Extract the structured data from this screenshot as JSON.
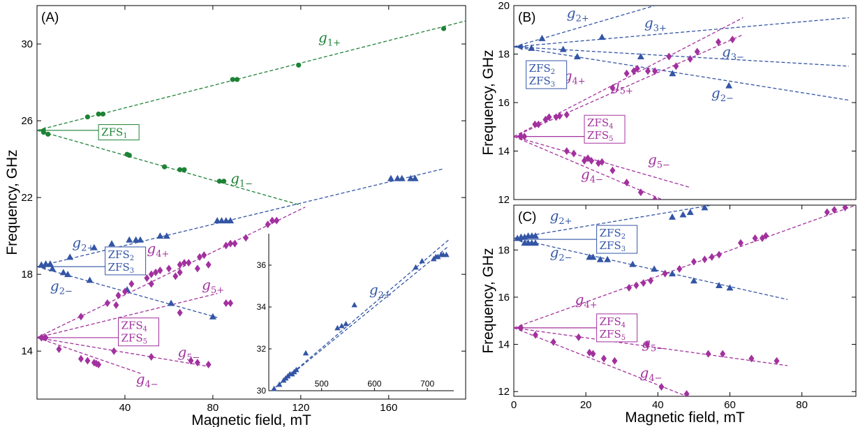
{
  "colors": {
    "green": "#1e8236",
    "blue": "#3355a5",
    "magenta": "#a2319e"
  },
  "chart_data": [
    {
      "panel": "(A)",
      "type": "scatter",
      "xlabel": "Magnetic field, mT",
      "ylabel": "Frequency, GHz",
      "xlim": [
        0,
        195
      ],
      "ylim": [
        11.5,
        32.0
      ],
      "xticks": [
        40,
        80,
        120,
        160
      ],
      "yticks": [
        14,
        18,
        22,
        26,
        30
      ],
      "lines": [
        {
          "color": "green",
          "x": [
            0,
            195
          ],
          "y": [
            25.5,
            31.2
          ]
        },
        {
          "color": "green",
          "x": [
            0,
            120
          ],
          "y": [
            25.5,
            21.6
          ]
        },
        {
          "color": "blue",
          "x": [
            0,
            185
          ],
          "y": [
            18.4,
            23.5
          ]
        },
        {
          "color": "blue",
          "x": [
            0,
            82
          ],
          "y": [
            18.4,
            15.75
          ]
        },
        {
          "color": "magenta",
          "x": [
            0,
            122
          ],
          "y": [
            14.7,
            21.5
          ]
        },
        {
          "color": "magenta",
          "x": [
            0,
            82
          ],
          "y": [
            14.7,
            17.0
          ]
        },
        {
          "color": "magenta",
          "x": [
            0,
            78
          ],
          "y": [
            14.7,
            13.2
          ]
        },
        {
          "color": "magenta",
          "x": [
            0,
            48
          ],
          "y": [
            14.7,
            12.8
          ]
        }
      ],
      "series": [
        {
          "color": "green",
          "marker": "circle",
          "x": [
            3,
            5,
            23,
            28,
            30,
            41,
            42,
            58,
            65,
            67,
            83,
            85,
            89,
            91,
            119,
            185
          ],
          "y": [
            25.4,
            25.3,
            26.2,
            26.35,
            26.35,
            24.25,
            24.2,
            23.6,
            23.45,
            23.45,
            22.85,
            22.85,
            28.15,
            28.15,
            28.9,
            30.8
          ]
        },
        {
          "color": "blue",
          "marker": "triangle",
          "x": [
            2,
            4,
            6,
            15,
            26,
            34,
            42,
            45,
            47,
            56,
            59,
            82,
            84,
            86,
            88,
            161,
            164,
            166,
            170,
            172,
            7,
            12,
            14,
            24,
            41,
            61,
            80
          ],
          "y": [
            18.5,
            18.55,
            18.55,
            18.9,
            19.4,
            19.6,
            19.8,
            19.8,
            19.8,
            20.0,
            20.0,
            20.8,
            20.8,
            20.8,
            20.8,
            23.0,
            23.0,
            23.0,
            23.0,
            23.0,
            18.3,
            18.1,
            18.0,
            17.7,
            17.2,
            16.5,
            15.8
          ]
        },
        {
          "color": "magenta",
          "marker": "diamond",
          "x": [
            2,
            4,
            32,
            37,
            40,
            43,
            50,
            52,
            54,
            56,
            60,
            65,
            67,
            69,
            74,
            76,
            86,
            88,
            90,
            95,
            105,
            107,
            109,
            20,
            36,
            52,
            63,
            65,
            73,
            78,
            65,
            86,
            88,
            35,
            52,
            70,
            73,
            78,
            10,
            20,
            23,
            26,
            27,
            28
          ],
          "y": [
            14.7,
            14.7,
            16.5,
            16.9,
            17.1,
            17.5,
            17.8,
            18.0,
            18.1,
            18.2,
            18.3,
            18.5,
            18.6,
            18.6,
            18.9,
            19.0,
            19.5,
            19.6,
            19.6,
            19.9,
            20.6,
            20.8,
            20.8,
            15.8,
            16.4,
            17.5,
            17.9,
            18.1,
            18.3,
            18.5,
            16.0,
            16.5,
            16.5,
            14.0,
            13.7,
            13.5,
            13.4,
            13.3,
            14.1,
            13.6,
            13.5,
            13.4,
            13.35,
            13.3
          ]
        }
      ],
      "labels": [
        {
          "base": "g",
          "sub": "1+",
          "color": "green",
          "x": 128,
          "y": 30.1
        },
        {
          "base": "g",
          "sub": "1−",
          "color": "green",
          "x": 88,
          "y": 22.75
        },
        {
          "base": "g",
          "sub": "2+",
          "color": "blue",
          "x": 16,
          "y": 19.4
        },
        {
          "base": "g",
          "sub": "2−",
          "color": "blue",
          "x": 6,
          "y": 17.15
        },
        {
          "base": "g",
          "sub": "4+",
          "color": "magenta",
          "x": 50,
          "y": 19.1
        },
        {
          "base": "g",
          "sub": "5+",
          "color": "magenta",
          "x": 75,
          "y": 17.2
        },
        {
          "base": "g",
          "sub": "5−",
          "color": "magenta",
          "x": 64,
          "y": 13.7
        },
        {
          "base": "g",
          "sub": "4−",
          "color": "magenta",
          "x": 45,
          "y": 12.3
        }
      ],
      "annotations": [
        {
          "color": "green",
          "lines": [
            {
              "base": "ZFS",
              "sub": "1"
            }
          ],
          "x": 28,
          "y": 25.4,
          "point": [
            0,
            25.5
          ]
        },
        {
          "color": "blue",
          "lines": [
            {
              "base": "ZFS",
              "sub": "2"
            },
            {
              "base": "ZFS",
              "sub": "3"
            }
          ],
          "x": 31,
          "y": 18.7,
          "point": [
            0,
            18.4
          ]
        },
        {
          "color": "magenta",
          "lines": [
            {
              "base": "ZFS",
              "sub": "4"
            },
            {
              "base": "ZFS",
              "sub": "5"
            }
          ],
          "x": 37,
          "y": 15.0,
          "point": [
            0,
            14.7
          ]
        }
      ],
      "inset": {
        "xlim": [
          400,
          750
        ],
        "ylim": [
          30,
          37.5
        ],
        "xticks": [
          500,
          600,
          700
        ],
        "yticks": [
          30,
          32,
          34,
          36
        ],
        "lines": [
          {
            "color": "blue",
            "x": [
              405,
              740
            ],
            "y": [
              30.0,
              37.2
            ]
          },
          {
            "color": "blue",
            "x": [
              405,
              740
            ],
            "y": [
              30.0,
              36.9
            ]
          }
        ],
        "series": [
          {
            "color": "blue",
            "marker": "triangle",
            "x": [
              410,
              420,
              428,
              432,
              436,
              440,
              444,
              448,
              452,
              470,
              530,
              538,
              546,
              562,
              678,
              690,
              712,
              716,
              720,
              726,
              730,
              736
            ],
            "y": [
              30.1,
              30.3,
              30.5,
              30.6,
              30.7,
              30.8,
              30.8,
              30.9,
              31.0,
              31.8,
              33.0,
              33.1,
              33.2,
              34.1,
              35.9,
              36.2,
              36.3,
              36.4,
              36.4,
              36.5,
              36.5,
              36.5
            ]
          }
        ],
        "labels": [
          {
            "base": "g",
            "sub": "2+",
            "color": "blue",
            "x": 590,
            "y": 34.6
          }
        ]
      }
    },
    {
      "panel": "(B)",
      "type": "scatter",
      "ylabel": "Frequency, GHz",
      "xlim": [
        0,
        97
      ],
      "ylim": [
        12,
        20
      ],
      "yticks": [
        12,
        14,
        16,
        18,
        20
      ],
      "lines": [
        {
          "color": "blue",
          "x": [
            0,
            40
          ],
          "y": [
            18.3,
            20.0
          ]
        },
        {
          "color": "blue",
          "x": [
            0,
            95
          ],
          "y": [
            18.3,
            19.5
          ]
        },
        {
          "color": "blue",
          "x": [
            0,
            95
          ],
          "y": [
            18.3,
            17.5
          ]
        },
        {
          "color": "blue",
          "x": [
            0,
            95
          ],
          "y": [
            18.3,
            16.1
          ]
        },
        {
          "color": "magenta",
          "x": [
            0,
            65
          ],
          "y": [
            14.6,
            19.5
          ]
        },
        {
          "color": "magenta",
          "x": [
            0,
            65
          ],
          "y": [
            14.6,
            18.8
          ]
        },
        {
          "color": "magenta",
          "x": [
            0,
            50
          ],
          "y": [
            14.6,
            12.5
          ]
        },
        {
          "color": "magenta",
          "x": [
            0,
            42
          ],
          "y": [
            14.6,
            12.0
          ]
        }
      ],
      "series": [
        {
          "color": "blue",
          "marker": "triangle",
          "x": [
            8,
            25,
            5,
            14,
            18,
            36,
            45,
            61
          ],
          "y": [
            18.65,
            18.7,
            18.25,
            18.2,
            17.9,
            17.9,
            17.2,
            16.7
          ]
        },
        {
          "color": "magenta",
          "marker": "diamond",
          "x": [
            2,
            3,
            6,
            7,
            9,
            10,
            12,
            13,
            15,
            28,
            32,
            34,
            35,
            38,
            40,
            44,
            46,
            50,
            52,
            58,
            62,
            15,
            17,
            20,
            21,
            22,
            24,
            25,
            28,
            32,
            36,
            40
          ],
          "y": [
            14.6,
            14.6,
            15.1,
            15.1,
            15.3,
            15.4,
            15.4,
            15.45,
            15.5,
            16.6,
            17.2,
            17.3,
            17.4,
            17.3,
            17.3,
            17.9,
            17.5,
            17.8,
            18.1,
            18.5,
            18.6,
            14.0,
            13.9,
            13.6,
            13.7,
            13.6,
            13.5,
            13.55,
            13.2,
            12.7,
            12.3,
            12.0
          ]
        }
      ],
      "labels": [
        {
          "base": "g",
          "sub": "2+",
          "color": "blue",
          "x": 15,
          "y": 19.5
        },
        {
          "base": "g",
          "sub": "3+",
          "color": "blue",
          "x": 37,
          "y": 19.1
        },
        {
          "base": "g",
          "sub": "3−",
          "color": "blue",
          "x": 59,
          "y": 17.9
        },
        {
          "base": "g",
          "sub": "2−",
          "color": "blue",
          "x": 56,
          "y": 16.2
        },
        {
          "base": "g",
          "sub": "4+",
          "color": "magenta",
          "x": 14,
          "y": 16.9
        },
        {
          "base": "g",
          "sub": "5+",
          "color": "magenta",
          "x": 27.5,
          "y": 16.5
        },
        {
          "base": "g",
          "sub": "5−",
          "color": "magenta",
          "x": 38,
          "y": 13.45
        },
        {
          "base": "g",
          "sub": "4−",
          "color": "magenta",
          "x": 19,
          "y": 12.85
        }
      ],
      "annotations": [
        {
          "color": "blue",
          "lines": [
            {
              "base": "ZFS",
              "sub": "2"
            },
            {
              "base": "ZFS",
              "sub": "3"
            }
          ],
          "x": 3.5,
          "y": 17.15,
          "point": [
            0,
            18.3
          ]
        },
        {
          "color": "magenta",
          "lines": [
            {
              "base": "ZFS",
              "sub": "4"
            },
            {
              "base": "ZFS",
              "sub": "5"
            }
          ],
          "x": 20,
          "y": 14.9,
          "point": [
            0,
            14.6
          ]
        }
      ]
    },
    {
      "panel": "(C)",
      "type": "scatter",
      "xlabel": "Magnetic field, mT",
      "ylabel": "Frequency, GHz",
      "xlim": [
        0,
        95
      ],
      "ylim": [
        11.8,
        19.9
      ],
      "xticks": [
        0,
        20,
        40,
        60,
        80
      ],
      "yticks": [
        12,
        14,
        16,
        18
      ],
      "lines": [
        {
          "color": "blue",
          "x": [
            0,
            55
          ],
          "y": [
            18.5,
            19.9
          ]
        },
        {
          "color": "blue",
          "x": [
            0,
            76
          ],
          "y": [
            18.5,
            15.9
          ]
        },
        {
          "color": "magenta",
          "x": [
            0,
            95
          ],
          "y": [
            14.7,
            19.9
          ]
        },
        {
          "color": "magenta",
          "x": [
            0,
            76
          ],
          "y": [
            14.7,
            13.1
          ]
        },
        {
          "color": "magenta",
          "x": [
            0,
            48
          ],
          "y": [
            14.7,
            11.8
          ]
        }
      ],
      "series": [
        {
          "color": "blue",
          "marker": "triangle",
          "x": [
            1,
            2,
            3,
            4,
            5,
            6,
            44,
            47,
            49,
            53,
            3,
            4,
            5,
            6,
            21,
            22,
            24,
            26,
            33,
            39,
            44,
            50,
            57,
            60
          ],
          "y": [
            18.5,
            18.55,
            18.55,
            18.6,
            18.6,
            18.6,
            19.4,
            19.5,
            19.6,
            19.8,
            18.3,
            18.3,
            18.3,
            18.3,
            17.7,
            17.7,
            17.6,
            17.6,
            17.4,
            17.2,
            17.0,
            16.7,
            16.5,
            16.4
          ]
        },
        {
          "color": "magenta",
          "marker": "diamond",
          "x": [
            2,
            32,
            34,
            36,
            38,
            42,
            46,
            50,
            53,
            55,
            57,
            63,
            67,
            69,
            70,
            87,
            89,
            92,
            6,
            18,
            37,
            54,
            58,
            66,
            73,
            11,
            21,
            22,
            25,
            28,
            41,
            48
          ],
          "y": [
            14.7,
            16.4,
            16.5,
            16.6,
            16.7,
            17.0,
            17.2,
            17.5,
            17.6,
            17.7,
            17.8,
            18.3,
            18.5,
            18.5,
            18.6,
            19.6,
            19.7,
            19.8,
            14.4,
            14.3,
            14.0,
            13.6,
            13.6,
            13.4,
            13.3,
            14.1,
            13.65,
            13.6,
            13.4,
            13.3,
            12.2,
            11.9
          ]
        }
      ],
      "labels": [
        {
          "base": "g",
          "sub": "2+",
          "color": "blue",
          "x": 10,
          "y": 19.25
        },
        {
          "base": "g",
          "sub": "2−",
          "color": "blue",
          "x": 10,
          "y": 17.7
        },
        {
          "base": "g",
          "sub": "4+",
          "color": "magenta",
          "x": 17,
          "y": 15.7
        },
        {
          "base": "g",
          "sub": "5−",
          "color": "magenta",
          "x": 35.5,
          "y": 13.85
        },
        {
          "base": "g",
          "sub": "4−",
          "color": "magenta",
          "x": 35,
          "y": 12.6
        }
      ],
      "annotations": [
        {
          "color": "blue",
          "lines": [
            {
              "base": "ZFS",
              "sub": "2"
            },
            {
              "base": "ZFS",
              "sub": "3"
            }
          ],
          "x": 23,
          "y": 18.45,
          "point": [
            0,
            18.45
          ]
        },
        {
          "color": "magenta",
          "lines": [
            {
              "base": "ZFS",
              "sub": "4"
            },
            {
              "base": "ZFS",
              "sub": "5"
            }
          ],
          "x": 23,
          "y": 14.7,
          "point": [
            0,
            14.7
          ]
        }
      ]
    }
  ]
}
